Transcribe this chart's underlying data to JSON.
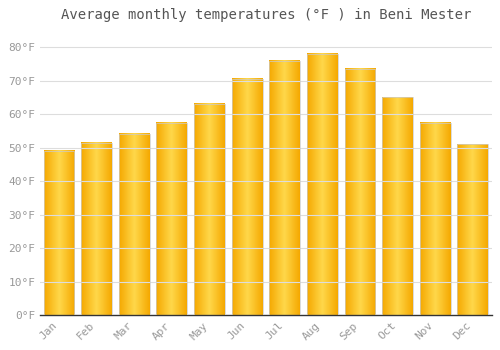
{
  "title": "Average monthly temperatures (°F ) in Beni Mester",
  "months": [
    "Jan",
    "Feb",
    "Mar",
    "Apr",
    "May",
    "Jun",
    "Jul",
    "Aug",
    "Sep",
    "Oct",
    "Nov",
    "Dec"
  ],
  "values": [
    49.0,
    51.5,
    54.0,
    57.5,
    63.0,
    70.5,
    76.0,
    78.0,
    73.5,
    65.0,
    57.5,
    51.0
  ],
  "bar_color_edge": "#F5A800",
  "bar_color_center": "#FFD84A",
  "background_color": "#ffffff",
  "grid_color": "#dddddd",
  "ylim": [
    0,
    85
  ],
  "yticks": [
    0,
    10,
    20,
    30,
    40,
    50,
    60,
    70,
    80
  ],
  "title_fontsize": 10,
  "tick_fontsize": 8,
  "tick_label_color": "#999999",
  "bar_width": 0.82
}
